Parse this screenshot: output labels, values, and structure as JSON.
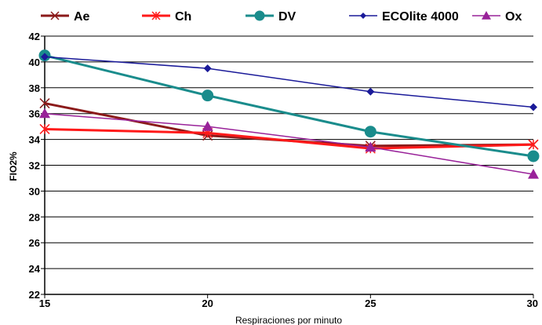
{
  "chart_data": {
    "type": "line",
    "xlabel": "Respiraciones  por minuto",
    "ylabel": "FIO2%",
    "x": [
      15,
      20,
      25,
      30
    ],
    "xlim": [
      15,
      30
    ],
    "ylim": [
      22,
      42
    ],
    "y_ticks": [
      22,
      24,
      26,
      28,
      30,
      32,
      34,
      36,
      38,
      40,
      42
    ],
    "x_ticks": [
      15,
      20,
      25,
      30
    ],
    "grid": "horizontal",
    "legend_position": "top",
    "series": [
      {
        "name": "Ae",
        "values": [
          36.8,
          34.3,
          33.5,
          33.6
        ],
        "color": "#8b1a1a",
        "marker": "x"
      },
      {
        "name": "Ch",
        "values": [
          34.8,
          34.5,
          33.3,
          33.6
        ],
        "color": "#ff1a1a",
        "marker": "asterisk"
      },
      {
        "name": "DV",
        "values": [
          40.5,
          37.4,
          34.6,
          32.7
        ],
        "color": "#1a8c8c",
        "marker": "circle"
      },
      {
        "name": "ECOlite 4000",
        "values": [
          40.4,
          39.5,
          37.7,
          36.5
        ],
        "color": "#1a1a99",
        "marker": "diamond"
      },
      {
        "name": "Ox",
        "values": [
          36.0,
          35.0,
          33.4,
          31.3
        ],
        "color": "#992299",
        "marker": "triangle"
      }
    ]
  }
}
